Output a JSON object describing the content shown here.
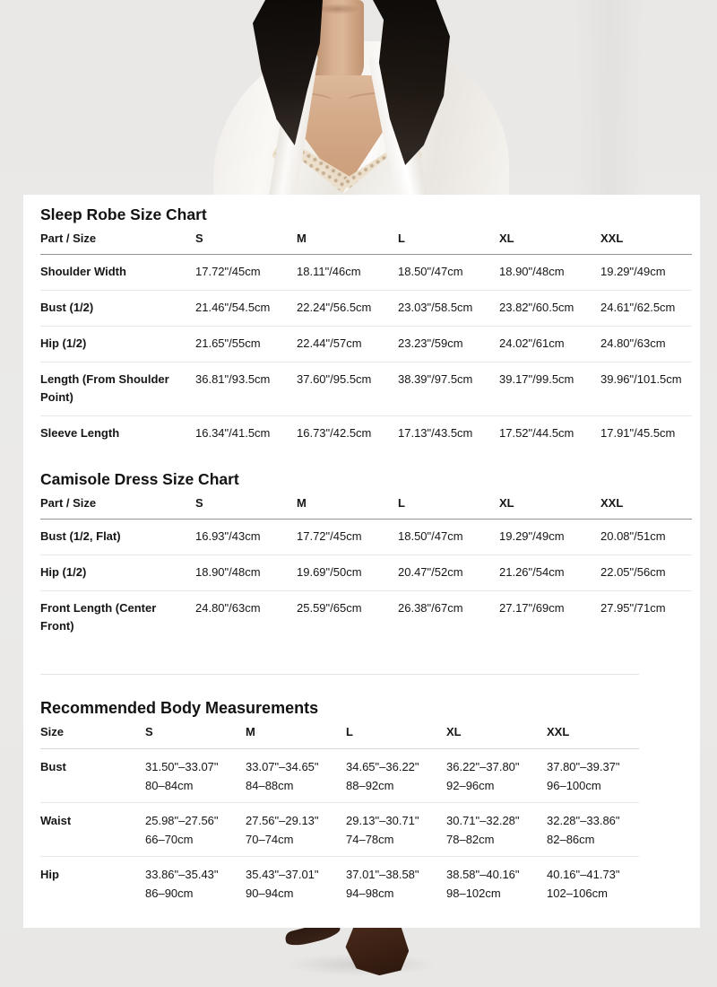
{
  "page": {
    "kind": "product-size-guide",
    "background_color": "#eae9e7",
    "card_color": "#ffffff",
    "text_color": "#161616",
    "header_rule_color": "#939393",
    "row_rule_color": "#e8e8e8",
    "images": {
      "top_photo": "model-wearing-white-satin-robe-over-lace-trimmed-camisole",
      "bottom_photo": "dark-brown-square-toe-shoes"
    },
    "photo_colors": {
      "skin": "#d3a987",
      "hair": "#1a1411",
      "robe": "#f7f5f2",
      "lace": "#ecdfcb",
      "shoes": "#3a2013"
    }
  },
  "size_guide": {
    "tables": [
      {
        "id": "sleep-robe",
        "title": "Sleep Robe Size Chart",
        "columns": [
          "Part / Size",
          "S",
          "M",
          "L",
          "XL",
          "XXL"
        ],
        "rows": [
          {
            "label": "Shoulder Width",
            "values": [
              "17.72\"/45cm",
              "18.11\"/46cm",
              "18.50\"/47cm",
              "18.90\"/48cm",
              "19.29\"/49cm"
            ]
          },
          {
            "label": "Bust (1/2)",
            "values": [
              "21.46\"/54.5cm",
              "22.24\"/56.5cm",
              "23.03\"/58.5cm",
              "23.82\"/60.5cm",
              "24.61\"/62.5cm"
            ]
          },
          {
            "label": "Hip (1/2)",
            "values": [
              "21.65\"/55cm",
              "22.44\"/57cm",
              "23.23\"/59cm",
              "24.02\"/61cm",
              "24.80\"/63cm"
            ]
          },
          {
            "label": "Length (From Shoulder Point)",
            "values": [
              "36.81\"/93.5cm",
              "37.60\"/95.5cm",
              "38.39\"/97.5cm",
              "39.17\"/99.5cm",
              "39.96\"/101.5cm"
            ]
          },
          {
            "label": "Sleeve Length",
            "values": [
              "16.34\"/41.5cm",
              "16.73\"/42.5cm",
              "17.13\"/43.5cm",
              "17.52\"/44.5cm",
              "17.91\"/45.5cm"
            ]
          }
        ]
      },
      {
        "id": "camisole-dress",
        "title": "Camisole Dress Size Chart",
        "columns": [
          "Part / Size",
          "S",
          "M",
          "L",
          "XL",
          "XXL"
        ],
        "rows": [
          {
            "label": "Bust (1/2, Flat)",
            "values": [
              "16.93\"/43cm",
              "17.72\"/45cm",
              "18.50\"/47cm",
              "19.29\"/49cm",
              "20.08\"/51cm"
            ]
          },
          {
            "label": "Hip (1/2)",
            "values": [
              "18.90\"/48cm",
              "19.69\"/50cm",
              "20.47\"/52cm",
              "21.26\"/54cm",
              "22.05\"/56cm"
            ]
          },
          {
            "label": "Front Length (Center Front)",
            "values": [
              "24.80\"/63cm",
              "25.59\"/65cm",
              "26.38\"/67cm",
              "27.17\"/69cm",
              "27.95\"/71cm"
            ]
          }
        ]
      },
      {
        "id": "body-measurements",
        "title": "Recommended Body Measurements",
        "columns": [
          "Size",
          "S",
          "M",
          "L",
          "XL",
          "XXL"
        ],
        "rows": [
          {
            "label": "Bust",
            "values": [
              [
                "31.50\"–33.07\"",
                "80–84cm"
              ],
              [
                "33.07\"–34.65\"",
                "84–88cm"
              ],
              [
                "34.65\"–36.22\"",
                "88–92cm"
              ],
              [
                "36.22\"–37.80\"",
                "92–96cm"
              ],
              [
                "37.80\"–39.37\"",
                "96–100cm"
              ]
            ]
          },
          {
            "label": "Waist",
            "values": [
              [
                "25.98\"–27.56\"",
                "66–70cm"
              ],
              [
                "27.56\"–29.13\"",
                "70–74cm"
              ],
              [
                "29.13\"–30.71\"",
                "74–78cm"
              ],
              [
                "30.71\"–32.28\"",
                "78–82cm"
              ],
              [
                "32.28\"–33.86\"",
                "82–86cm"
              ]
            ]
          },
          {
            "label": "Hip",
            "values": [
              [
                "33.86\"–35.43\"",
                "86–90cm"
              ],
              [
                "35.43\"–37.01\"",
                "90–94cm"
              ],
              [
                "37.01\"–38.58\"",
                "94–98cm"
              ],
              [
                "38.58\"–40.16\"",
                "98–102cm"
              ],
              [
                "40.16\"–41.73\"",
                "102–106cm"
              ]
            ]
          }
        ]
      }
    ]
  }
}
